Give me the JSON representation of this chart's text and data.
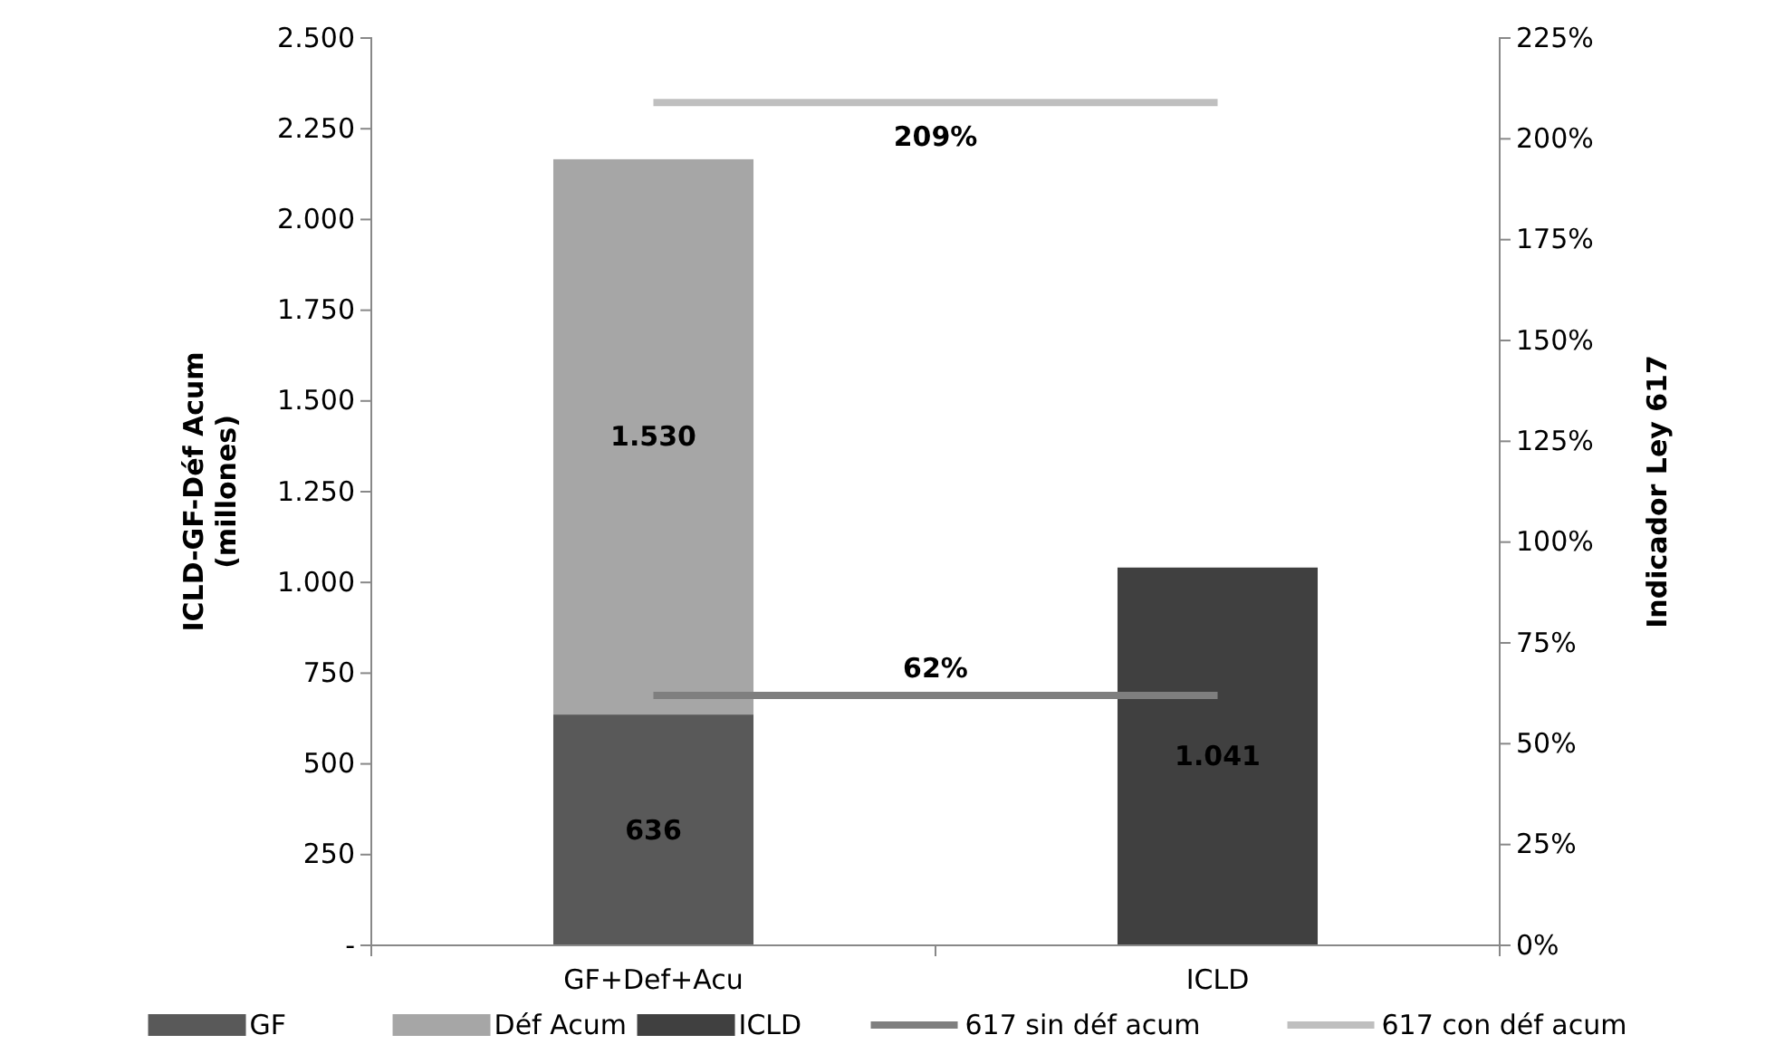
{
  "chart_data": {
    "type": "bar",
    "stacked": true,
    "categories": [
      "GF+Def+Acu",
      "ICLD"
    ],
    "ylabel": "ICLD-GF-Déf Acum (millones)",
    "y2label": "Indicador Ley 617",
    "ylim": [
      0,
      2500
    ],
    "yticks": [
      {
        "value": 0,
        "label": "-"
      },
      {
        "value": 250,
        "label": "250"
      },
      {
        "value": 500,
        "label": "500"
      },
      {
        "value": 750,
        "label": "750"
      },
      {
        "value": 1000,
        "label": "1.000"
      },
      {
        "value": 1250,
        "label": "1.250"
      },
      {
        "value": 1500,
        "label": "1.500"
      },
      {
        "value": 1750,
        "label": "1.750"
      },
      {
        "value": 2000,
        "label": "2.000"
      },
      {
        "value": 2250,
        "label": "2.250"
      },
      {
        "value": 2500,
        "label": "2.500"
      }
    ],
    "y2lim": [
      0,
      225
    ],
    "y2ticks": [
      {
        "value": 0,
        "label": "0%"
      },
      {
        "value": 25,
        "label": "25%"
      },
      {
        "value": 50,
        "label": "50%"
      },
      {
        "value": 75,
        "label": "75%"
      },
      {
        "value": 100,
        "label": "100%"
      },
      {
        "value": 125,
        "label": "125%"
      },
      {
        "value": 150,
        "label": "150%"
      },
      {
        "value": 175,
        "label": "175%"
      },
      {
        "value": 200,
        "label": "200%"
      },
      {
        "value": 225,
        "label": "225%"
      }
    ],
    "grid": false,
    "legend": "bottom",
    "series": [
      {
        "name": "GF",
        "color": "#595959",
        "values": [
          636,
          null
        ],
        "value_labels": [
          "636",
          null
        ]
      },
      {
        "name": "Déf Acum",
        "color": "#a6a6a6",
        "values": [
          1530,
          null
        ],
        "value_labels": [
          "1.530",
          null
        ]
      },
      {
        "name": "ICLD",
        "color": "#404040",
        "values": [
          null,
          1041
        ],
        "value_labels": [
          null,
          "1.041"
        ]
      },
      {
        "name": "617 sin déf acum",
        "type": "line",
        "axis": "y2",
        "color": "#7f7f7f",
        "values": [
          62,
          62
        ]
      },
      {
        "name": "617 con déf acum",
        "type": "line",
        "axis": "y2",
        "color": "#bfbfbf",
        "values": [
          209,
          209
        ]
      }
    ],
    "annotations": [
      "62%",
      "209%"
    ]
  }
}
